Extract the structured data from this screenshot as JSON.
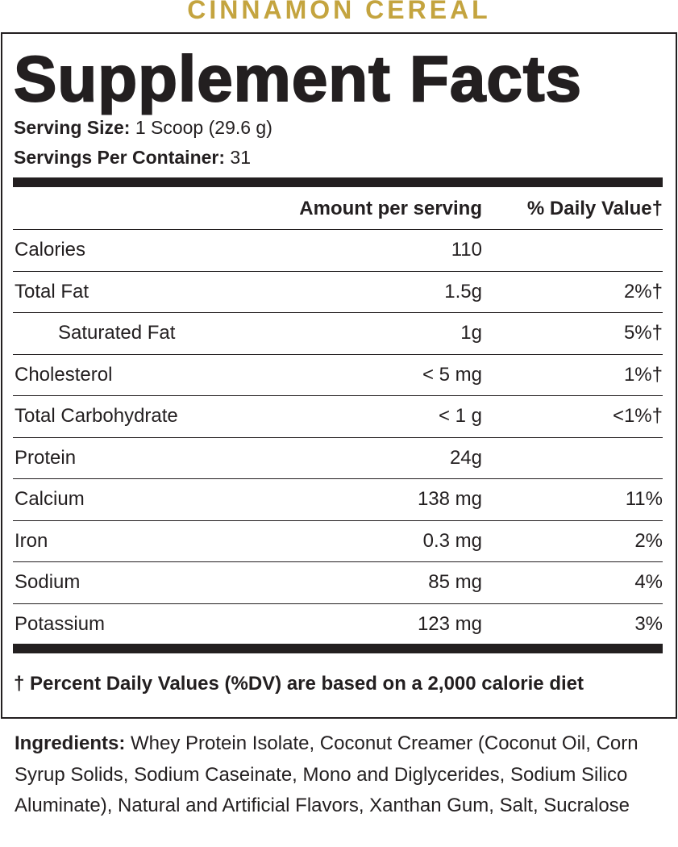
{
  "header": {
    "flavor": "CINNAMON CEREAL",
    "title": "Supplement Facts"
  },
  "serving": {
    "size_label": "Serving Size:",
    "size": "1 Scoop (29.6 g)",
    "per_container_label": "Servings Per Container:",
    "per_container": "31"
  },
  "table": {
    "columns": [
      "Amount per serving",
      "% Daily Value†"
    ],
    "rows": [
      {
        "name": "Calories",
        "amount": "110"
      },
      {
        "name": "Total Fat",
        "amount": "1.5g",
        "dv": "2%†",
        "sub_rows": [
          {
            "name": "Saturated Fat",
            "amount": "1g",
            "dv": "5%†"
          }
        ]
      },
      {
        "name": "Cholesterol",
        "amount": "< 5 mg",
        "dv": "1%†"
      },
      {
        "name": "Total Carbohydrate",
        "amount": "< 1 g",
        "dv": "<1%†"
      },
      {
        "name": "Protein",
        "amount": "24g"
      },
      {
        "name": "Calcium",
        "amount": "138 mg",
        "dv": "11%"
      },
      {
        "name": "Iron",
        "amount": "0.3 mg",
        "dv": "2%"
      },
      {
        "name": "Sodium",
        "amount": "85 mg",
        "dv": "4%"
      },
      {
        "name": "Potassium",
        "amount": "123 mg",
        "dv": "3%"
      }
    ]
  },
  "footnote": "† Percent Daily Values (%DV) are based on a 2,000 calorie diet",
  "ingredients": {
    "label": "Ingredients:",
    "text": "Whey Protein Isolate, Coconut Creamer (Coconut Oil, Corn Syrup Solids, Sodium Caseinate, Mono and Diglycerides, Sodium Silico Aluminate), Natural and Artificial Flavors, Xanthan Gum, Salt, Sucralose"
  }
}
